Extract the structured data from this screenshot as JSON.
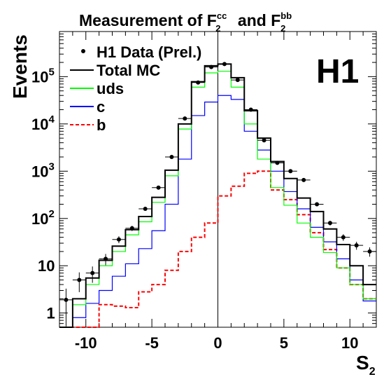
{
  "chart_data": {
    "type": "histogram",
    "title_parts": {
      "prefix": "Measurement of F",
      "cc_sub": "2",
      "cc_sup": "c",
      "cc_sup2": "c",
      "joiner": "and F",
      "bb_sub": "2",
      "bb_sup": "b",
      "bb_sup2": "b"
    },
    "xlabel": "S",
    "xlabel_sub": "2",
    "ylabel": "Events",
    "logo": "H1",
    "xlim": [
      -12,
      12
    ],
    "ylim": [
      0.5,
      900000
    ],
    "y_log": true,
    "x_ticks": [
      -10,
      -5,
      0,
      5,
      10
    ],
    "x_tick_labels": [
      "-10",
      "-5",
      "0",
      "5",
      "10"
    ],
    "y_ticks": [
      {
        "value": 1,
        "label": "1"
      },
      {
        "value": 10,
        "label": "10"
      },
      {
        "value": 100,
        "label": "10",
        "exp": "2"
      },
      {
        "value": 1000,
        "label": "10",
        "exp": "3"
      },
      {
        "value": 10000,
        "label": "10",
        "exp": "4"
      },
      {
        "value": 100000,
        "label": "10",
        "exp": "5"
      }
    ],
    "bin_edges": [
      -12,
      -11,
      -10,
      -9,
      -8,
      -7,
      -6,
      -5,
      -4,
      -3,
      -2,
      -1,
      0,
      1,
      2,
      3,
      4,
      5,
      6,
      7,
      8,
      9,
      10,
      11,
      12
    ],
    "vertical_line_x": 0,
    "legend": [
      {
        "label": "H1 Data (Prel.)",
        "style": "marker",
        "color": "#000000"
      },
      {
        "label": "Total MC",
        "style": "line",
        "color": "#000000"
      },
      {
        "label": "uds",
        "style": "line",
        "color": "#00ff00"
      },
      {
        "label": "c",
        "style": "line",
        "color": "#0000ff"
      },
      {
        "label": "b",
        "style": "dashed",
        "color": "#ff0000"
      }
    ],
    "series": [
      {
        "name": "Total MC",
        "color": "#000000",
        "values": [
          0.5,
          2,
          5.5,
          13,
          26,
          58,
          110,
          280,
          1050,
          10000,
          78000,
          170000,
          185000,
          95000,
          19000,
          5000,
          1600,
          700,
          270,
          140,
          60,
          28,
          10,
          4
        ]
      },
      {
        "name": "uds",
        "color": "#00ff00",
        "values": [
          0.5,
          1.5,
          4,
          10,
          20,
          45,
          85,
          220,
          800,
          7800,
          60000,
          120000,
          130000,
          60000,
          10000,
          1800,
          450,
          190,
          80,
          40,
          19,
          9,
          4,
          2
        ]
      },
      {
        "name": "c",
        "color": "#0000ff",
        "values": [
          0.5,
          0.8,
          1.6,
          3,
          6,
          11,
          23,
          55,
          200,
          1800,
          15000,
          29000,
          40000,
          33000,
          7000,
          2800,
          1000,
          370,
          160,
          65,
          32,
          14,
          5,
          1.8
        ]
      },
      {
        "name": "b",
        "color": "#ff0000",
        "values": [
          0.45,
          0.45,
          0.45,
          1.5,
          1.4,
          1.3,
          2.8,
          4,
          8,
          20,
          40,
          80,
          300,
          480,
          900,
          1000,
          400,
          250,
          120,
          50,
          22,
          9,
          4,
          2
        ]
      },
      {
        "name": "H1 Data (Prel.)",
        "color": "#000000",
        "x": [
          -11.5,
          -10.5,
          -9.5,
          -8.5,
          -7.5,
          -6.5,
          -5.5,
          -4.5,
          -3.5,
          -2.5,
          -1.5,
          -0.5,
          0.5,
          1.5,
          2.5,
          3.5,
          4.5,
          5.5,
          6.5,
          7.5,
          8.5,
          9.5,
          10.5,
          11.5
        ],
        "values": [
          1.9,
          5,
          7,
          14,
          36,
          62,
          160,
          450,
          2000,
          13000,
          75000,
          160000,
          185000,
          85000,
          20000,
          4500,
          1500,
          1000,
          650,
          200,
          80,
          40,
          27,
          20
        ]
      }
    ]
  }
}
